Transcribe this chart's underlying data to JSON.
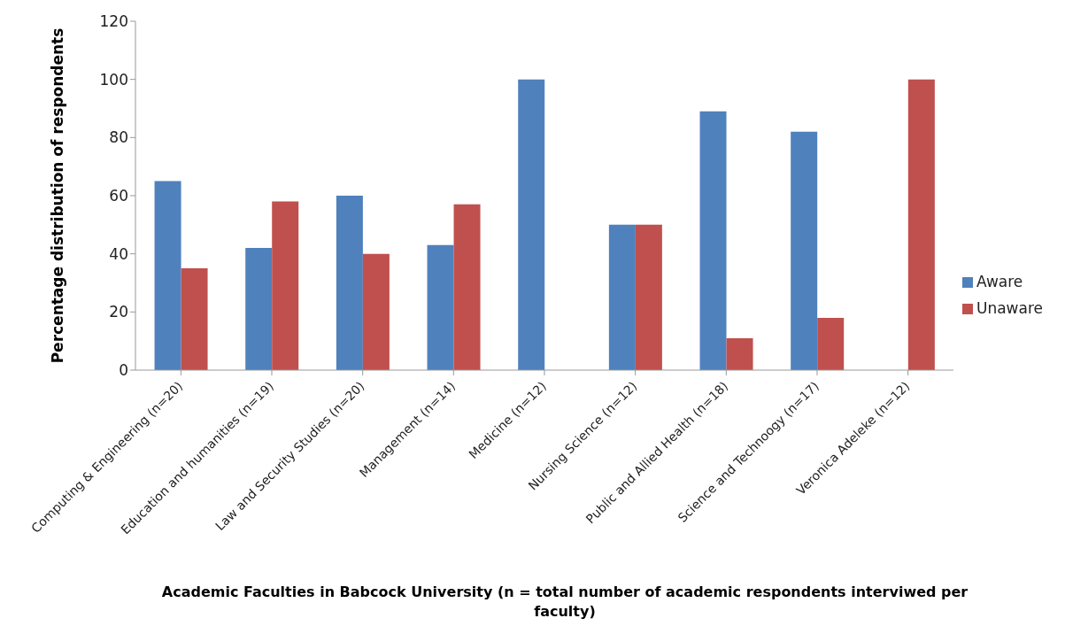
{
  "chart_data": {
    "type": "bar",
    "xlabel": "Academic Faculties in Babcock University (n = total number of academic respondents interviwed per faculty)",
    "ylabel": "Percentage distribution  of respondents",
    "categories": [
      "Computing & Engineering (n=20)",
      "Education and humanities (n=19)",
      "Law and Security Studies (n=20)",
      "Management (n=14)",
      "Medicine (n=12)",
      "Nursing Science (n=12)",
      "Public and Allied Health (n=18)",
      "Science and Technoogy (n=17)",
      "Veronica Adeleke (n=12)"
    ],
    "series": [
      {
        "name": "Aware",
        "color": "#4f81bd",
        "values": [
          65,
          42,
          60,
          43,
          100,
          50,
          89,
          82,
          0
        ]
      },
      {
        "name": "Unaware",
        "color": "#c0504d",
        "values": [
          35,
          58,
          40,
          57,
          0,
          50,
          11,
          18,
          100
        ]
      }
    ],
    "ylim": [
      0,
      120
    ],
    "yticks": [
      0,
      20,
      40,
      60,
      80,
      100,
      120
    ],
    "legend": "right"
  }
}
